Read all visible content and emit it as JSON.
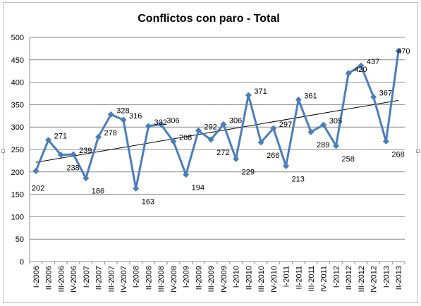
{
  "chart_data": {
    "type": "line",
    "title": "Conflictos con paro - Total",
    "categories": [
      "I-2006",
      "II-2006",
      "III-2006",
      "IV-2006",
      "I-2007",
      "II-2007",
      "III-2007",
      "IV-2007",
      "I-2008",
      "II-2008",
      "III-2008",
      "IV-2008",
      "I-2009",
      "II-2009",
      "III-2009",
      "IV-2009",
      "I-2010",
      "II-2010",
      "III-2010",
      "IV-2010",
      "I-2011",
      "II-2011",
      "III-2011",
      "IV-2011",
      "I-2012",
      "II-2012",
      "III-2012",
      "IV-2012",
      "I-2013",
      "II-2013"
    ],
    "x_tick_labels": [
      "I-2006",
      "II-2006",
      "III-2006",
      "IV-2006",
      "I-2007",
      "II-2007",
      "III-2007",
      "IV-2007",
      "I-2008",
      "II-2008",
      "III-2008",
      "IV-2008",
      "I-2009",
      "II-2009",
      "III-2009",
      "IV-2009",
      "I-2010",
      "II-2010",
      "III-2010",
      "IV-2010",
      "I-2011",
      "II-2011",
      "III-2011",
      "IV-2011",
      "I-2012",
      "II-2012",
      "III-2012",
      "IV-2012",
      "I-2013",
      "II-2013"
    ],
    "series": [
      {
        "values": [
          202,
          271,
          238,
          239,
          186,
          278,
          328,
          316,
          163,
          302,
          306,
          268,
          194,
          292,
          272,
          306,
          229,
          371,
          266,
          297,
          213,
          361,
          289,
          305,
          258,
          420,
          437,
          367,
          268,
          470
        ],
        "color": "#4a7ebb",
        "marker": "diamond"
      }
    ],
    "trendline": {
      "type": "linear",
      "color": "#000000"
    },
    "ylim": [
      0,
      500
    ],
    "yticks": [
      0,
      50,
      100,
      150,
      200,
      250,
      300,
      350,
      400,
      450,
      500
    ],
    "grid": true,
    "legend": "none",
    "xlabel": "",
    "ylabel": ""
  }
}
